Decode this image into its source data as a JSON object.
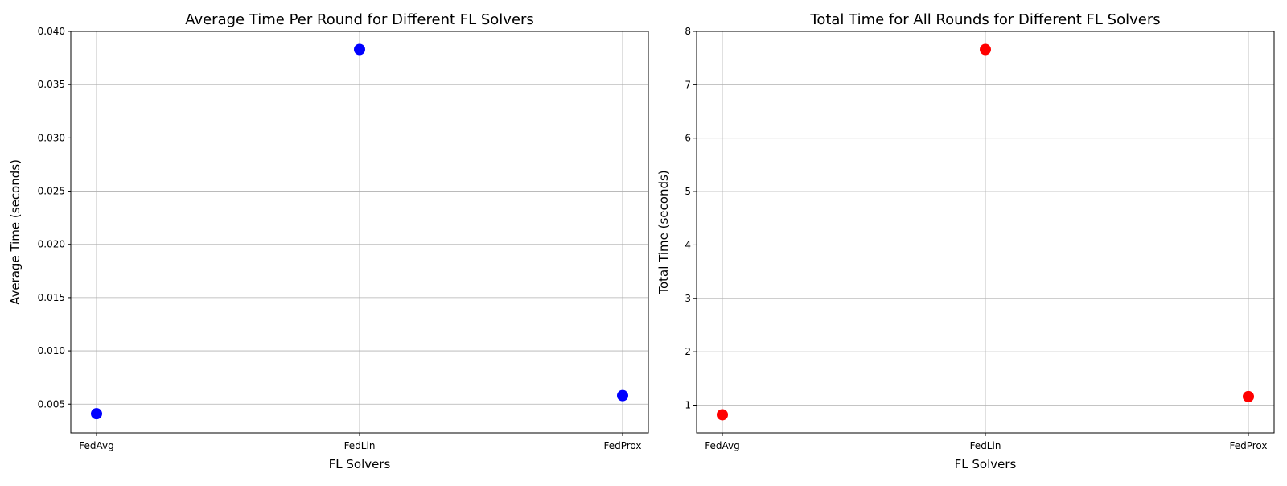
{
  "chart_data": [
    {
      "type": "scatter",
      "title": "Average Time Per Round for Different FL Solvers",
      "xlabel": "FL Solvers",
      "ylabel": "Average Time (seconds)",
      "categories": [
        "FedAvg",
        "FedLin",
        "FedProx"
      ],
      "series": [
        {
          "values": [
            0.0041,
            0.0383,
            0.0058
          ],
          "color": "#0000ff"
        }
      ],
      "ylim": [
        0.0023,
        0.04
      ],
      "yticks": [
        0.005,
        0.01,
        0.015,
        0.02,
        0.025,
        0.03,
        0.035,
        0.04
      ],
      "ytick_labels": [
        "0.005",
        "0.010",
        "0.015",
        "0.020",
        "0.025",
        "0.030",
        "0.035",
        "0.040"
      ],
      "grid": true,
      "legend": "none"
    },
    {
      "type": "scatter",
      "title": "Total Time for All Rounds for Different FL Solvers",
      "xlabel": "FL Solvers",
      "ylabel": "Total Time (seconds)",
      "categories": [
        "FedAvg",
        "FedLin",
        "FedProx"
      ],
      "series": [
        {
          "values": [
            0.82,
            7.66,
            1.16
          ],
          "color": "#ff0000"
        }
      ],
      "ylim": [
        0.48,
        8.0
      ],
      "yticks": [
        1,
        2,
        3,
        4,
        5,
        6,
        7,
        8
      ],
      "ytick_labels": [
        "1",
        "2",
        "3",
        "4",
        "5",
        "6",
        "7",
        "8"
      ],
      "grid": true,
      "legend": "none"
    }
  ]
}
